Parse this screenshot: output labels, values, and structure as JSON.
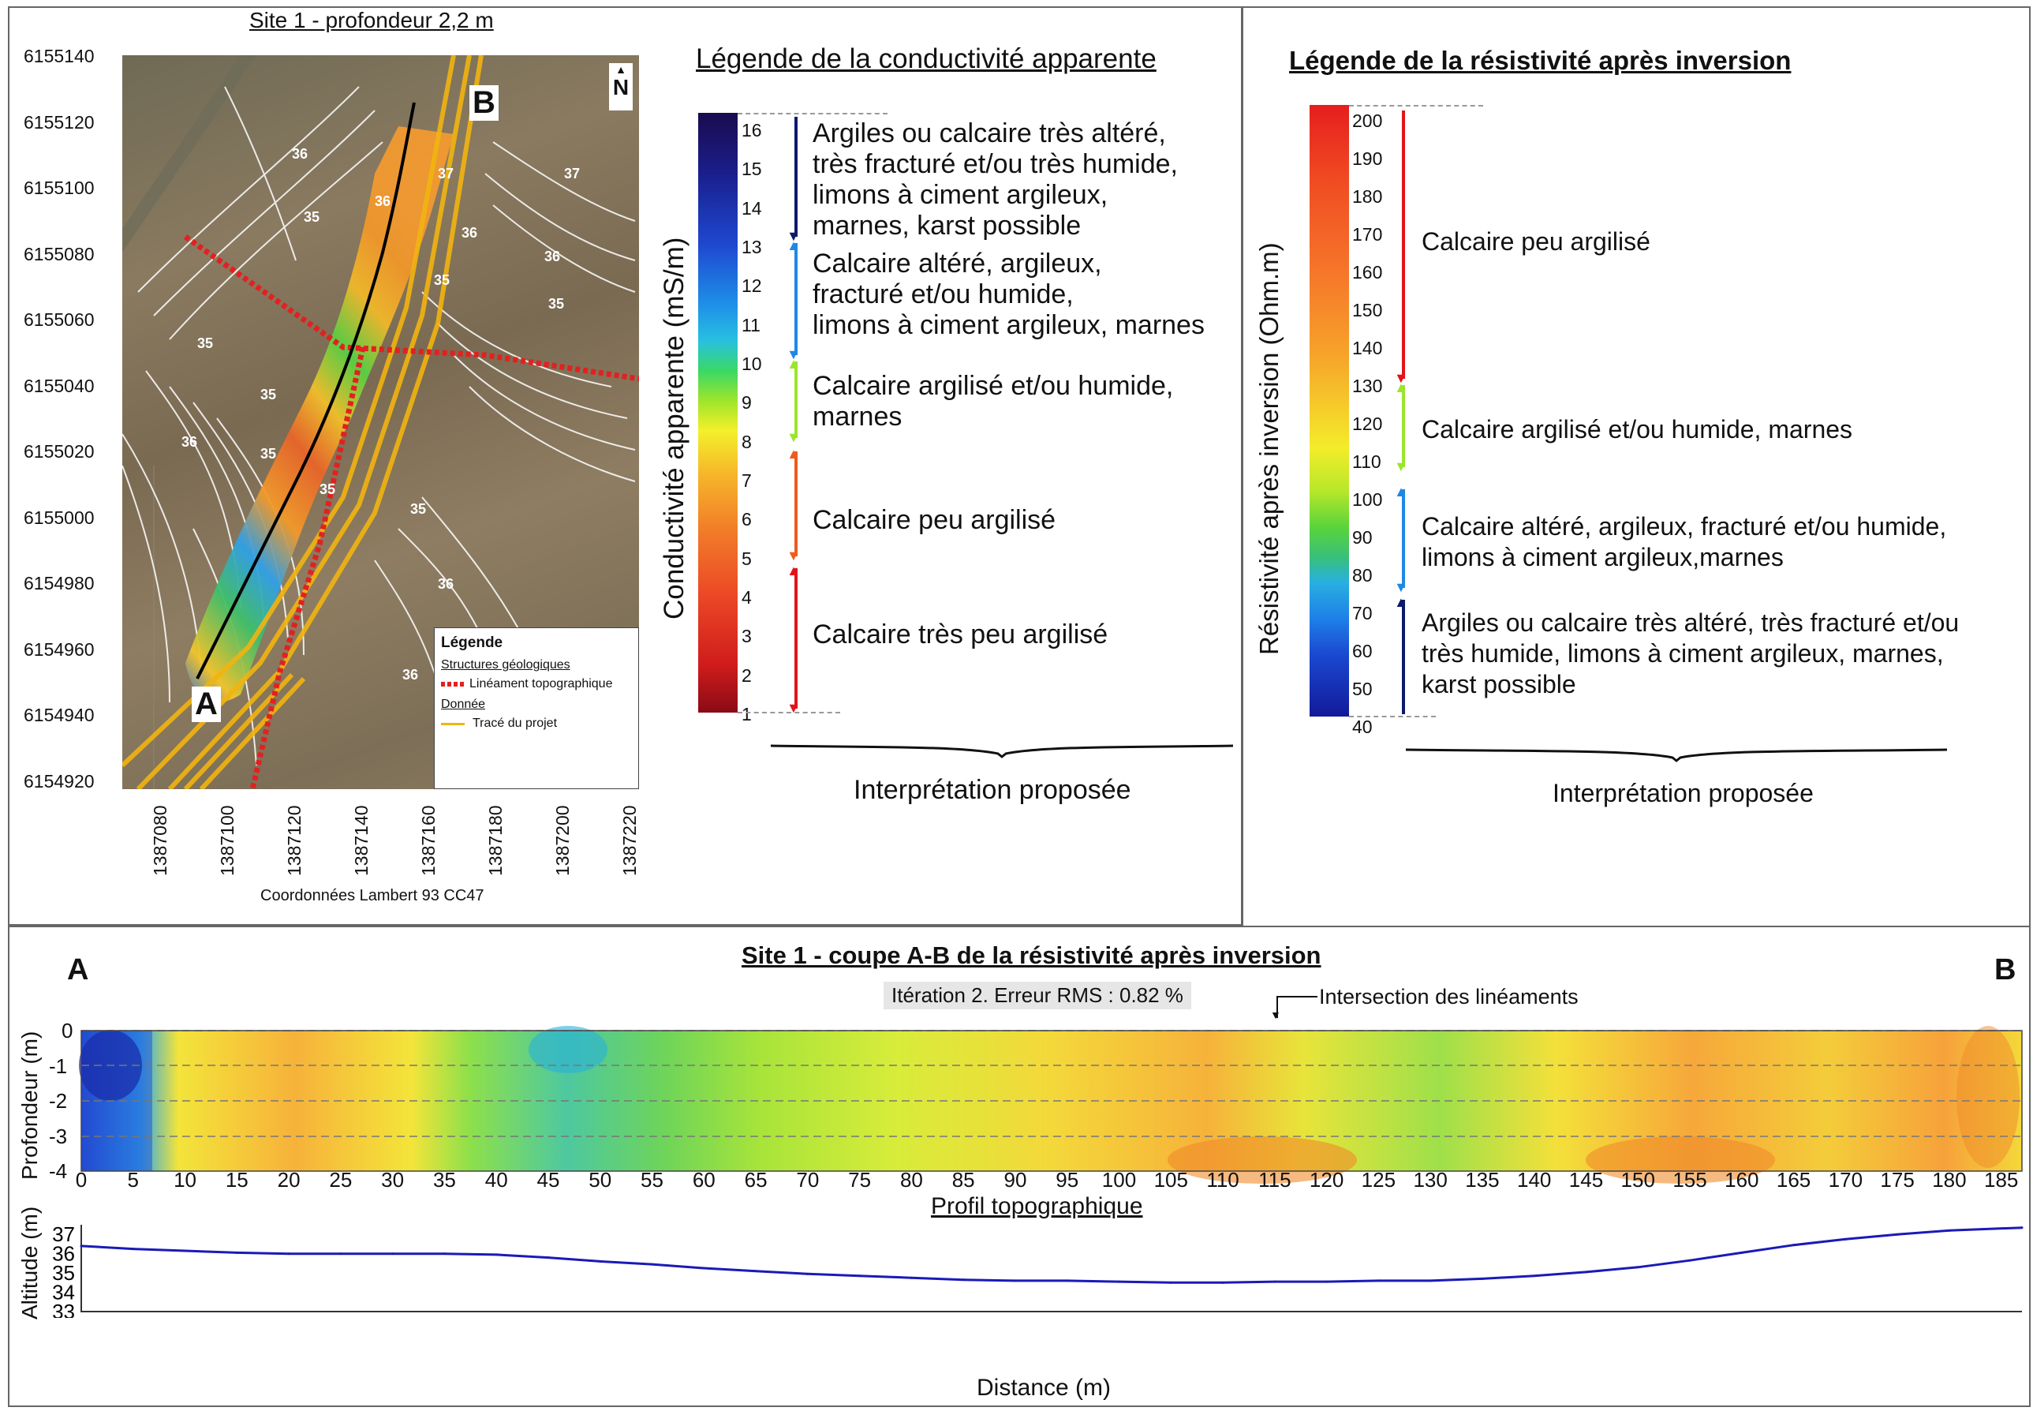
{
  "map_panel": {
    "title": "Site 1 - profondeur 2,2 m",
    "y_ticks": [
      "6155140",
      "6155120",
      "6155100",
      "6155080",
      "6155060",
      "6155040",
      "6155020",
      "6155000",
      "6154980",
      "6154960",
      "6154940",
      "6154920"
    ],
    "x_ticks": [
      "1387080",
      "1387100",
      "1387120",
      "1387140",
      "1387160",
      "1387180",
      "1387200",
      "1387220"
    ],
    "x_caption": "Coordonnées Lambert 93 CC47",
    "point_a": "A",
    "point_b": "B",
    "north": "N",
    "contour_labels": [
      "36",
      "36",
      "35",
      "37",
      "36",
      "35",
      "36",
      "37",
      "35",
      "35",
      "35",
      "35",
      "36",
      "35",
      "35",
      "36",
      "36"
    ],
    "legend": {
      "title": "Légende",
      "section1": "Structures géologiques",
      "item1": "Linéament topographique",
      "section2": "Donnée",
      "item2": "Tracé du projet"
    }
  },
  "conductivity_legend": {
    "title": "Légende de la conductivité apparente",
    "axis_label": "Conductivité apparente (mS/m)",
    "ticks": [
      "16",
      "15",
      "14",
      "13",
      "12",
      "11",
      "10",
      "9",
      "8",
      "7",
      "6",
      "5",
      "4",
      "3",
      "2",
      "1"
    ],
    "classes": [
      {
        "text": [
          "Argiles ou calcaire très altéré,",
          "très fracturé et/ou très humide,",
          "limons à ciment argileux,",
          "marnes, karst possible"
        ],
        "color": "#0b1a6e"
      },
      {
        "text": [
          "Calcaire altéré, argileux,",
          "fracturé et/ou humide,",
          "limons à ciment argileux, marnes"
        ],
        "color": "#1e88e5"
      },
      {
        "text": [
          "Calcaire argilisé et/ou humide,",
          "marnes"
        ],
        "color": "#9be52b"
      },
      {
        "text": [
          "Calcaire peu argilisé"
        ],
        "color": "#f05a1a"
      },
      {
        "text": [
          "Calcaire très peu argilisé"
        ],
        "color": "#e3131b"
      }
    ],
    "caption": "Interprétation proposée"
  },
  "resistivity_legend": {
    "title": "Légende de la résistivité après inversion",
    "axis_label": "Résistivité après inversion (Ohm.m)",
    "ticks": [
      "200",
      "190",
      "180",
      "170",
      "160",
      "150",
      "140",
      "130",
      "120",
      "110",
      "100",
      "90",
      "80",
      "70",
      "60",
      "50",
      "40"
    ],
    "classes": [
      {
        "text": [
          "Calcaire peu argilisé"
        ],
        "color": "#e3131b"
      },
      {
        "text": [
          "Calcaire argilisé et/ou humide, marnes"
        ],
        "color": "#9be52b"
      },
      {
        "text": [
          "Calcaire altéré, argileux, fracturé et/ou humide,",
          "limons à ciment argileux,marnes"
        ],
        "color": "#1e88e5"
      },
      {
        "text": [
          "Argiles ou calcaire très altéré, très fracturé et/ou",
          "très humide, limons à ciment argileux, marnes,",
          "karst possible"
        ],
        "color": "#0b1a6e"
      }
    ],
    "caption": "Interprétation proposée"
  },
  "section": {
    "title": "Site 1 - coupe A-B de la résistivité après inversion",
    "label_a": "A",
    "label_b": "B",
    "iteration": "Itération 2. Erreur RMS : 0.82 %",
    "intersection": "Intersection des linéaments",
    "y_label": "Profondeur (m)",
    "y_ticks": [
      "0",
      "-1",
      "-2",
      "-3",
      "-4"
    ],
    "x_ticks": [
      "0",
      "5",
      "10",
      "15",
      "20",
      "25",
      "30",
      "35",
      "40",
      "45",
      "50",
      "55",
      "60",
      "65",
      "70",
      "75",
      "80",
      "85",
      "90",
      "95",
      "100",
      "105",
      "110",
      "115",
      "120",
      "125",
      "130",
      "135",
      "140",
      "145",
      "150",
      "155",
      "160",
      "165",
      "170",
      "175",
      "180",
      "185"
    ]
  },
  "chart_data": {
    "type": "line",
    "title": "Profil topographique",
    "xlabel": "Distance (m)",
    "ylabel": "Altitude (m)",
    "xlim": [
      0,
      187
    ],
    "ylim": [
      33,
      37.5
    ],
    "y_ticks": [
      "37",
      "36",
      "35",
      "34",
      "33"
    ],
    "x_ticks": [
      "0",
      "5",
      "10",
      "15",
      "20",
      "25",
      "30",
      "35",
      "40",
      "45",
      "50",
      "55",
      "60",
      "65",
      "70",
      "75",
      "80",
      "85",
      "90",
      "95",
      "100",
      "105",
      "110",
      "115",
      "120",
      "125",
      "130",
      "135",
      "140",
      "145",
      "150",
      "155",
      "160",
      "165",
      "170",
      "175",
      "180",
      "185"
    ],
    "series": [
      {
        "color": "#1a1ab8",
        "x": [
          0,
          5,
          10,
          15,
          20,
          25,
          30,
          35,
          40,
          45,
          50,
          55,
          60,
          65,
          70,
          75,
          80,
          85,
          90,
          95,
          100,
          105,
          110,
          115,
          120,
          125,
          130,
          135,
          140,
          145,
          150,
          155,
          160,
          165,
          170,
          175,
          180,
          187
        ],
        "y": [
          36.4,
          36.25,
          36.15,
          36.05,
          36.0,
          36.0,
          36.0,
          36.0,
          35.95,
          35.8,
          35.6,
          35.45,
          35.25,
          35.1,
          34.95,
          34.85,
          34.75,
          34.65,
          34.6,
          34.6,
          34.55,
          34.5,
          34.5,
          34.55,
          34.55,
          34.6,
          34.6,
          34.7,
          34.85,
          35.05,
          35.3,
          35.65,
          36.05,
          36.45,
          36.75,
          37.0,
          37.2,
          37.35
        ]
      }
    ]
  }
}
